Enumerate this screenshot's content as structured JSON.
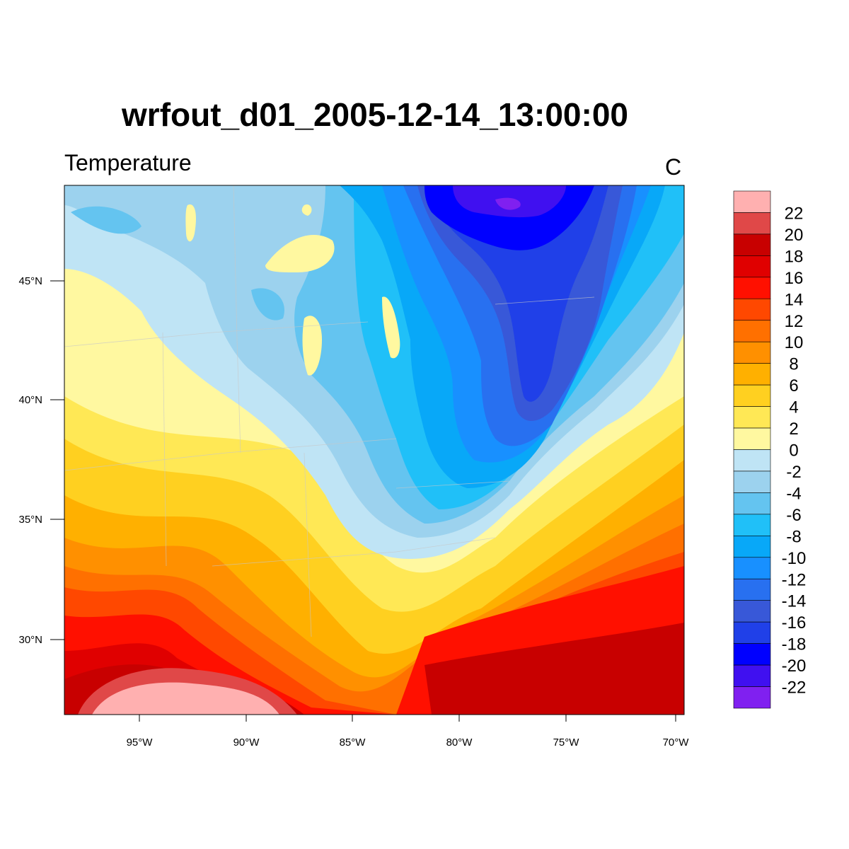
{
  "header": {
    "title": "wrfout_d01_2005-12-14_13:00:00",
    "left_string": "Temperature",
    "right_string": "C"
  },
  "map": {
    "lon_ticks": [
      "95°W",
      "90°W",
      "85°W",
      "80°W",
      "75°W",
      "70°W"
    ],
    "lat_ticks": [
      "45°N",
      "40°N",
      "35°N",
      "30°N"
    ]
  },
  "colorbar": {
    "labels": [
      "22",
      "20",
      "18",
      "16",
      "14",
      "12",
      "10",
      "8",
      "6",
      "4",
      "2",
      "0",
      "-2",
      "-4",
      "-6",
      "-8",
      "-10",
      "-12",
      "-14",
      "-16",
      "-18",
      "-20",
      "-22"
    ],
    "colors": [
      "#ffb0b0",
      "#e04848",
      "#c80000",
      "#e00000",
      "#ff1000",
      "#ff4800",
      "#ff7000",
      "#ff9000",
      "#ffb000",
      "#ffd020",
      "#ffe855",
      "#fff8a0",
      "#bfe4f5",
      "#9cd2ee",
      "#64c4f0",
      "#20c0f8",
      "#08a8f8",
      "#1890ff",
      "#2870f0",
      "#3858d8",
      "#2040e8",
      "#0000ff",
      "#4010f0",
      "#8020f0"
    ]
  }
}
